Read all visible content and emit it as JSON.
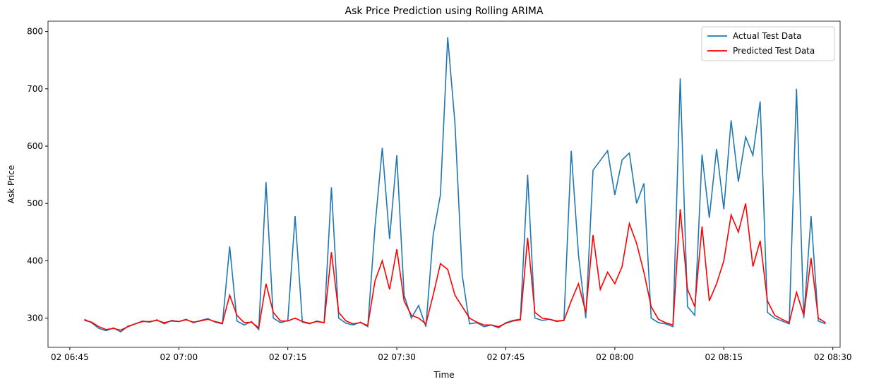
{
  "chart_data": {
    "type": "line",
    "title": "Ask Price Prediction using Rolling ARIMA",
    "x_label": "Time",
    "y_label": "Ask Price",
    "x": [
      "02 06:47",
      "02 06:48",
      "02 06:49",
      "02 06:50",
      "02 06:51",
      "02 06:52",
      "02 06:53",
      "02 06:54",
      "02 06:55",
      "02 06:56",
      "02 06:57",
      "02 06:58",
      "02 06:59",
      "02 07:00",
      "02 07:01",
      "02 07:02",
      "02 07:03",
      "02 07:04",
      "02 07:05",
      "02 07:06",
      "02 07:07",
      "02 07:08",
      "02 07:09",
      "02 07:10",
      "02 07:11",
      "02 07:12",
      "02 07:13",
      "02 07:14",
      "02 07:15",
      "02 07:16",
      "02 07:17",
      "02 07:18",
      "02 07:19",
      "02 07:20",
      "02 07:21",
      "02 07:22",
      "02 07:23",
      "02 07:24",
      "02 07:25",
      "02 07:26",
      "02 07:27",
      "02 07:28",
      "02 07:29",
      "02 07:30",
      "02 07:31",
      "02 07:32",
      "02 07:33",
      "02 07:34",
      "02 07:35",
      "02 07:36",
      "02 07:37",
      "02 07:38",
      "02 07:39",
      "02 07:40",
      "02 07:41",
      "02 07:42",
      "02 07:43",
      "02 07:44",
      "02 07:45",
      "02 07:46",
      "02 07:47",
      "02 07:48",
      "02 07:49",
      "02 07:50",
      "02 07:51",
      "02 07:52",
      "02 07:53",
      "02 07:54",
      "02 07:55",
      "02 07:56",
      "02 07:57",
      "02 07:58",
      "02 07:59",
      "02 08:00",
      "02 08:01",
      "02 08:02",
      "02 08:03",
      "02 08:04",
      "02 08:05",
      "02 08:06",
      "02 08:07",
      "02 08:08",
      "02 08:09",
      "02 08:10",
      "02 08:11",
      "02 08:12",
      "02 08:13",
      "02 08:14",
      "02 08:15",
      "02 08:16",
      "02 08:17",
      "02 08:18",
      "02 08:19",
      "02 08:20",
      "02 08:21",
      "02 08:22",
      "02 08:23",
      "02 08:24",
      "02 08:25",
      "02 08:26",
      "02 08:27",
      "02 08:28",
      "02 08:29"
    ],
    "series": [
      {
        "name": "Actual Test Data",
        "color": "#1f77b4",
        "values": [
          298,
          292,
          282,
          278,
          283,
          276,
          286,
          290,
          295,
          293,
          297,
          290,
          296,
          294,
          298,
          292,
          296,
          299,
          293,
          290,
          425,
          295,
          288,
          294,
          280,
          537,
          300,
          292,
          296,
          478,
          293,
          290,
          295,
          292,
          528,
          300,
          291,
          288,
          293,
          285,
          460,
          597,
          438,
          584,
          340,
          300,
          322,
          285,
          445,
          515,
          790,
          640,
          375,
          290,
          292,
          285,
          288,
          283,
          292,
          296,
          298,
          550,
          300,
          296,
          298,
          294,
          296,
          592,
          410,
          300,
          558,
          575,
          592,
          515,
          576,
          588,
          500,
          535,
          300,
          292,
          290,
          285,
          718,
          320,
          305,
          585,
          475,
          595,
          490,
          645,
          538,
          616,
          584,
          678,
          310,
          300,
          295,
          290,
          700,
          300,
          478,
          295,
          290
        ]
      },
      {
        "name": "Predicted Test Data",
        "color": "#ff0000",
        "values": [
          296,
          293,
          285,
          280,
          282,
          279,
          285,
          290,
          294,
          294,
          296,
          292,
          295,
          294,
          297,
          293,
          295,
          298,
          294,
          291,
          340,
          305,
          292,
          293,
          283,
          360,
          310,
          295,
          295,
          300,
          294,
          291,
          294,
          292,
          415,
          310,
          295,
          290,
          292,
          287,
          365,
          400,
          350,
          420,
          330,
          305,
          300,
          290,
          340,
          395,
          385,
          340,
          320,
          300,
          293,
          288,
          288,
          285,
          291,
          295,
          297,
          440,
          310,
          300,
          298,
          295,
          296,
          330,
          360,
          310,
          445,
          350,
          380,
          360,
          390,
          465,
          430,
          380,
          320,
          298,
          292,
          288,
          490,
          350,
          320,
          460,
          330,
          360,
          400,
          480,
          450,
          500,
          390,
          435,
          330,
          305,
          298,
          292,
          345,
          305,
          405,
          300,
          292
        ]
      }
    ],
    "xlim": [
      "02 06:42",
      "02 08:31"
    ],
    "xticks": [
      "02 06:45",
      "02 07:00",
      "02 07:15",
      "02 07:30",
      "02 07:45",
      "02 08:00",
      "02 08:15",
      "02 08:30"
    ],
    "ylim": [
      249,
      818
    ],
    "yticks": [
      300,
      400,
      500,
      600,
      700,
      800
    ],
    "grid": false,
    "legend": "upper right"
  }
}
